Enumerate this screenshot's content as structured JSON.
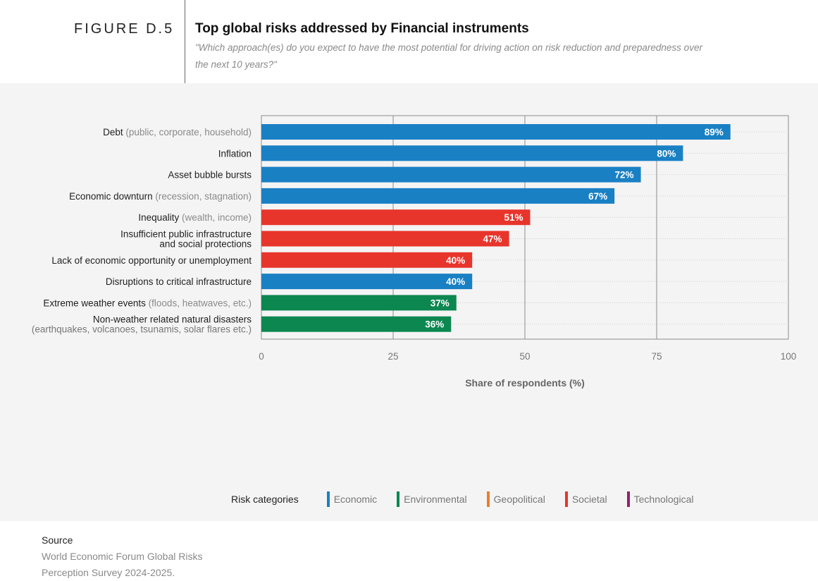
{
  "figure_label": "FIGURE D.5",
  "title": "Top global risks addressed by Financial instruments",
  "subtitle": "\"Which approach(es) do you expect to have the most potential for driving action on risk reduction and preparedness over the next 10 years?\"",
  "colors": {
    "Economic": "#1a80c4",
    "Environmental": "#0c8750",
    "Geopolitical": "#ec7d2d",
    "Societal": "#e8352c",
    "Technological": "#8e2270"
  },
  "chart_data": {
    "type": "bar",
    "orientation": "horizontal",
    "title": "Top global risks addressed by Financial instruments",
    "xlabel": "Share of respondents (%)",
    "ylabel": "",
    "xlim": [
      0,
      100
    ],
    "xticks": [
      0,
      25,
      50,
      75,
      100
    ],
    "grid": true,
    "categories": [
      {
        "label": "Debt",
        "qualifier": "(public, corporate, household)",
        "value": 89,
        "value_label": "89%",
        "category": "Economic"
      },
      {
        "label": "Inflation",
        "qualifier": "",
        "value": 80,
        "value_label": "80%",
        "category": "Economic"
      },
      {
        "label": "Asset bubble bursts",
        "qualifier": "",
        "value": 72,
        "value_label": "72%",
        "category": "Economic"
      },
      {
        "label": "Economic downturn",
        "qualifier": "(recession, stagnation)",
        "value": 67,
        "value_label": "67%",
        "category": "Economic"
      },
      {
        "label": "Inequality",
        "qualifier": "(wealth, income)",
        "value": 51,
        "value_label": "51%",
        "category": "Societal"
      },
      {
        "label": "Insufficient public infrastructure and social protections",
        "label_lines": [
          "Insufficient public infrastructure",
          "and social protections"
        ],
        "qualifier": "",
        "value": 47,
        "value_label": "47%",
        "category": "Societal"
      },
      {
        "label": "Lack of economic opportunity or unemployment",
        "qualifier": "",
        "value": 40,
        "value_label": "40%",
        "category": "Societal"
      },
      {
        "label": "Disruptions to critical infrastructure",
        "qualifier": "",
        "value": 40,
        "value_label": "40%",
        "category": "Economic"
      },
      {
        "label": "Extreme weather events",
        "qualifier": "(floods, heatwaves, etc.)",
        "value": 37,
        "value_label": "37%",
        "category": "Environmental"
      },
      {
        "label": "Non-weather related natural disasters",
        "label_lines": [
          "Non-weather related natural disasters",
          "(earthquakes, volcanoes, tsunamis, solar flares etc.)"
        ],
        "qualifier": "",
        "value": 36,
        "value_label": "36%",
        "category": "Environmental"
      }
    ],
    "legend": {
      "title": "Risk categories",
      "placement": "bottom",
      "items": [
        "Economic",
        "Environmental",
        "Geopolitical",
        "Societal",
        "Technological"
      ]
    }
  },
  "source": {
    "label": "Source",
    "text": "World Economic Forum Global Risks Perception Survey 2024-2025."
  }
}
